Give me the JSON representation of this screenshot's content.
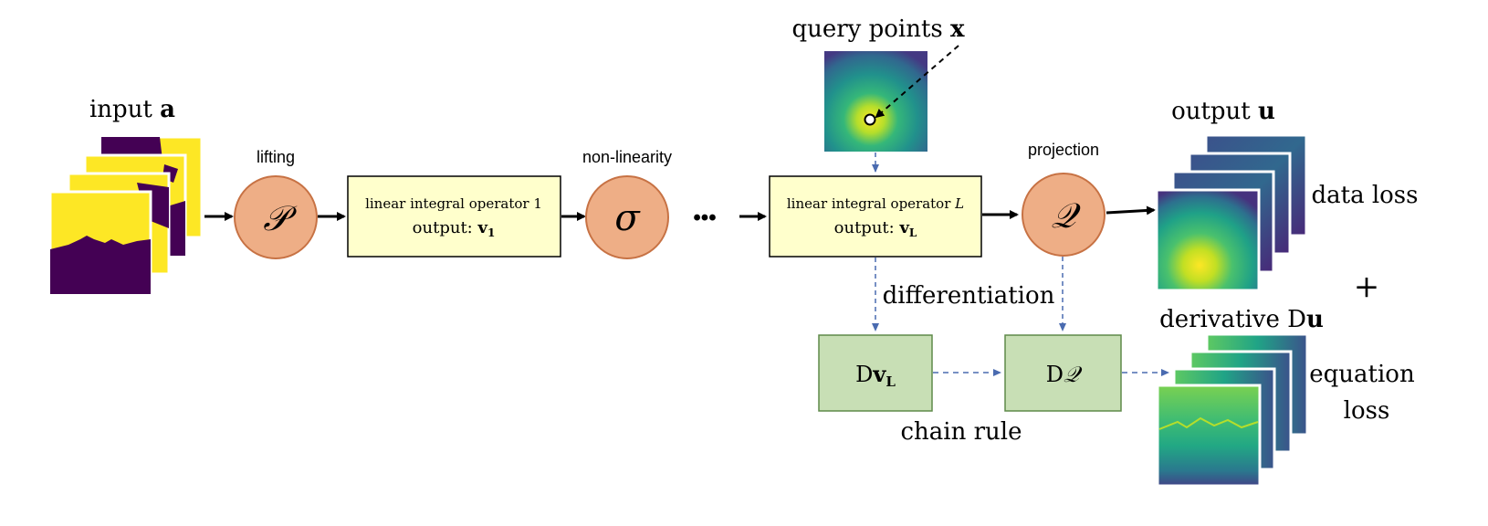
{
  "labels": {
    "input_prefix": "input ",
    "input_var": "a",
    "lifting": "lifting",
    "lifting_symbol": "𝒫",
    "nonlinearity": "non-linearity",
    "nonlinearity_symbol": "σ",
    "ellipsis": "•••",
    "projection": "projection",
    "projection_symbol": "𝒬",
    "query_prefix": "query points ",
    "query_var": "x",
    "output_prefix": "output ",
    "output_var": "u",
    "data_loss": "data loss",
    "plus": "+",
    "derivative_prefix": "derivative D",
    "derivative_var": "u",
    "equation": "equation",
    "loss": "loss",
    "differentiation": "differentiation",
    "chain_rule": "chain rule"
  },
  "op1": {
    "title": "linear integral operator 1",
    "output_prefix": "output: ",
    "output_var": "v",
    "output_sub": "1"
  },
  "opL": {
    "title_prefix": "linear integral operator ",
    "title_var": "L",
    "output_prefix": "output: ",
    "output_var": "v",
    "output_sub": "L"
  },
  "dv": {
    "prefix": "D",
    "var": "v",
    "sub": "L"
  },
  "dq": {
    "prefix": "D",
    "var": "𝒬"
  },
  "colors": {
    "circle_fill": "#eeae86",
    "circle_stroke": "#c77244",
    "op_fill": "#ffffcc",
    "deriv_fill": "#c8dfb5",
    "deriv_stroke": "#5f8a4a",
    "dashed": "#4a6bb0",
    "viridis_dark": "#440154",
    "viridis_yellow": "#fde725"
  }
}
